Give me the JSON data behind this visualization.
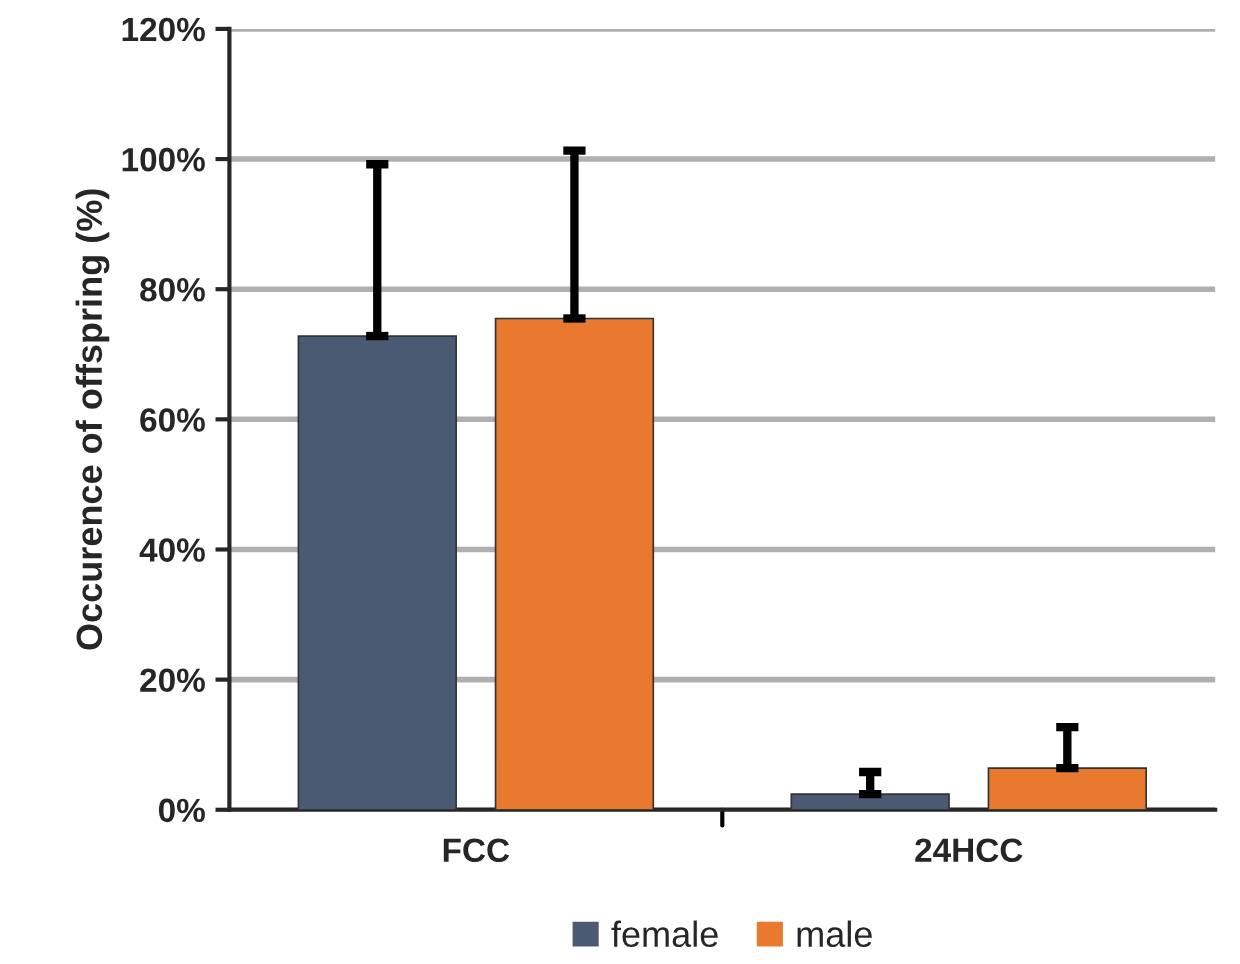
{
  "chart_data": {
    "type": "bar",
    "ylabel": "Occurence of offspring (%)",
    "categories": [
      "FCC",
      "24HCC"
    ],
    "series": [
      {
        "name": "female",
        "color": "#4a5a73",
        "values": [
          72.8,
          2.4
        ],
        "errors": [
          [
            72.8,
            99.2
          ],
          [
            2.4,
            5.8
          ]
        ]
      },
      {
        "name": "male",
        "color": "#e8792f",
        "values": [
          75.5,
          6.4
        ],
        "errors": [
          [
            75.5,
            101.3
          ],
          [
            6.4,
            12.7
          ]
        ]
      }
    ],
    "ylim": [
      0,
      120
    ],
    "yticks": [
      {
        "value": 0,
        "label": "0%"
      },
      {
        "value": 20,
        "label": "20%"
      },
      {
        "value": 40,
        "label": "40%"
      },
      {
        "value": 60,
        "label": "60%"
      },
      {
        "value": 80,
        "label": "80%"
      },
      {
        "value": 100,
        "label": "100%"
      },
      {
        "value": 120,
        "label": "120%"
      }
    ],
    "grid": "y",
    "legend": "bottom"
  }
}
